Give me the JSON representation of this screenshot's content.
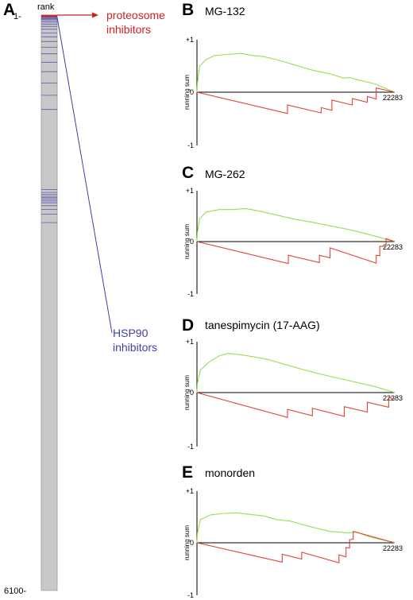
{
  "colors": {
    "up": "#99dd55",
    "down": "#e0443a",
    "hsp90": "#3f3fa8",
    "proteosome": "#cc2222",
    "bar": "#c8c8c8"
  },
  "rank_bar": {
    "header": "rank",
    "top_label": "1-",
    "bottom_label": "6100-",
    "panel_letter": "A",
    "annotation_proteosome": [
      "proteosome",
      "inhibitors"
    ],
    "annotation_hsp90": [
      "HSP90",
      "inhibitors"
    ],
    "total_rank": 6100,
    "hsp90_hits": [
      5,
      12,
      20,
      28,
      36,
      45,
      60,
      75,
      95,
      120,
      150,
      190,
      230,
      280,
      340,
      410,
      500,
      600,
      720,
      850,
      1000,
      1850,
      1880,
      1900,
      1920,
      1935,
      1950,
      1970,
      1990,
      2020,
      2060,
      2110,
      2200
    ],
    "proteosome_hits": [
      2,
      8,
      15
    ]
  },
  "chart_data": [
    {
      "type": "line",
      "panel": "B",
      "title": "MG-132",
      "ylabel": "running sum",
      "ylim": [
        -1,
        1
      ],
      "yticks": [
        "+1",
        "0",
        "-1"
      ],
      "xlim": [
        0,
        22283
      ],
      "x_end_label": "22283",
      "series": [
        {
          "color": "up",
          "points": [
            [
              0,
              0
            ],
            [
              60,
              0.2
            ],
            [
              300,
              0.5
            ],
            [
              1000,
              0.62
            ],
            [
              2000,
              0.7
            ],
            [
              3500,
              0.72
            ],
            [
              5000,
              0.74
            ],
            [
              6200,
              0.7
            ],
            [
              7500,
              0.68
            ],
            [
              9000,
              0.62
            ],
            [
              11000,
              0.52
            ],
            [
              13000,
              0.42
            ],
            [
              15000,
              0.35
            ],
            [
              16500,
              0.27
            ],
            [
              17200,
              0.28
            ],
            [
              18000,
              0.24
            ],
            [
              20000,
              0.16
            ],
            [
              22283,
              0
            ]
          ]
        },
        {
          "color": "down",
          "points": [
            [
              0,
              0
            ],
            [
              10200,
              -0.4
            ],
            [
              10200,
              -0.24
            ],
            [
              14000,
              -0.39
            ],
            [
              14000,
              -0.29
            ],
            [
              15200,
              -0.34
            ],
            [
              15200,
              -0.15
            ],
            [
              17500,
              -0.24
            ],
            [
              17500,
              -0.12
            ],
            [
              19200,
              -0.19
            ],
            [
              19200,
              -0.08
            ],
            [
              20200,
              -0.13
            ],
            [
              20200,
              0.08
            ],
            [
              22283,
              0
            ]
          ]
        }
      ]
    },
    {
      "type": "line",
      "panel": "C",
      "title": "MG-262",
      "ylabel": "running sum",
      "ylim": [
        -1,
        1
      ],
      "yticks": [
        "+1",
        "0",
        "-1"
      ],
      "xlim": [
        0,
        22283
      ],
      "x_end_label": "22283",
      "series": [
        {
          "color": "up",
          "points": [
            [
              0,
              0
            ],
            [
              60,
              0.2
            ],
            [
              300,
              0.45
            ],
            [
              1000,
              0.58
            ],
            [
              2500,
              0.63
            ],
            [
              4000,
              0.63
            ],
            [
              5500,
              0.65
            ],
            [
              7000,
              0.6
            ],
            [
              9000,
              0.52
            ],
            [
              11000,
              0.44
            ],
            [
              13000,
              0.38
            ],
            [
              15000,
              0.31
            ],
            [
              17000,
              0.24
            ],
            [
              19000,
              0.16
            ],
            [
              21000,
              0.06
            ],
            [
              22283,
              0
            ]
          ]
        },
        {
          "color": "down",
          "points": [
            [
              0,
              0
            ],
            [
              10300,
              -0.42
            ],
            [
              10300,
              -0.26
            ],
            [
              13800,
              -0.4
            ],
            [
              13800,
              -0.26
            ],
            [
              15000,
              -0.31
            ],
            [
              15000,
              -0.12
            ],
            [
              20200,
              -0.41
            ],
            [
              20200,
              -0.26
            ],
            [
              20600,
              -0.27
            ],
            [
              20600,
              -0.09
            ],
            [
              21300,
              -0.09
            ],
            [
              21300,
              0.06
            ],
            [
              22283,
              0
            ]
          ]
        }
      ]
    },
    {
      "type": "line",
      "panel": "D",
      "title": "tanespimycin (17-AAG)",
      "ylabel": "running sum",
      "ylim": [
        -1,
        1
      ],
      "yticks": [
        "+1",
        "0",
        "-1"
      ],
      "xlim": [
        0,
        22283
      ],
      "x_end_label": "22283",
      "series": [
        {
          "color": "up",
          "points": [
            [
              0,
              0
            ],
            [
              60,
              0.2
            ],
            [
              400,
              0.45
            ],
            [
              1500,
              0.62
            ],
            [
              2500,
              0.72
            ],
            [
              3500,
              0.77
            ],
            [
              5000,
              0.74
            ],
            [
              6500,
              0.7
            ],
            [
              8000,
              0.65
            ],
            [
              10000,
              0.55
            ],
            [
              12000,
              0.45
            ],
            [
              14000,
              0.36
            ],
            [
              16000,
              0.28
            ],
            [
              18000,
              0.2
            ],
            [
              20000,
              0.12
            ],
            [
              22283,
              0
            ]
          ]
        },
        {
          "color": "down",
          "points": [
            [
              0,
              0
            ],
            [
              10200,
              -0.46
            ],
            [
              10200,
              -0.31
            ],
            [
              13000,
              -0.43
            ],
            [
              13000,
              -0.29
            ],
            [
              16600,
              -0.44
            ],
            [
              16600,
              -0.26
            ],
            [
              19200,
              -0.36
            ],
            [
              19200,
              -0.18
            ],
            [
              21600,
              -0.27
            ],
            [
              21600,
              -0.09
            ],
            [
              22283,
              -0.12
            ]
          ]
        }
      ]
    },
    {
      "type": "line",
      "panel": "E",
      "title": "monorden",
      "ylabel": "running sum",
      "ylim": [
        -1,
        1
      ],
      "yticks": [
        "+1",
        "0",
        "-1"
      ],
      "xlim": [
        0,
        22283
      ],
      "x_end_label": "22283",
      "series": [
        {
          "color": "up",
          "points": [
            [
              0,
              0
            ],
            [
              60,
              0.2
            ],
            [
              400,
              0.45
            ],
            [
              1500,
              0.54
            ],
            [
              3000,
              0.57
            ],
            [
              4500,
              0.58
            ],
            [
              6000,
              0.55
            ],
            [
              7500,
              0.52
            ],
            [
              9000,
              0.45
            ],
            [
              10500,
              0.42
            ],
            [
              12000,
              0.35
            ],
            [
              13500,
              0.28
            ],
            [
              15000,
              0.22
            ],
            [
              17000,
              0.19
            ],
            [
              18000,
              0.21
            ],
            [
              19500,
              0.11
            ],
            [
              22283,
              0
            ]
          ]
        },
        {
          "color": "down",
          "points": [
            [
              0,
              0
            ],
            [
              9600,
              -0.37
            ],
            [
              9600,
              -0.22
            ],
            [
              11800,
              -0.31
            ],
            [
              11800,
              -0.18
            ],
            [
              16000,
              -0.38
            ],
            [
              16000,
              -0.23
            ],
            [
              16800,
              -0.27
            ],
            [
              16800,
              -0.09
            ],
            [
              17200,
              -0.1
            ],
            [
              17200,
              0.06
            ],
            [
              17600,
              0.07
            ],
            [
              17600,
              0.22
            ],
            [
              22283,
              0
            ]
          ]
        }
      ]
    }
  ]
}
